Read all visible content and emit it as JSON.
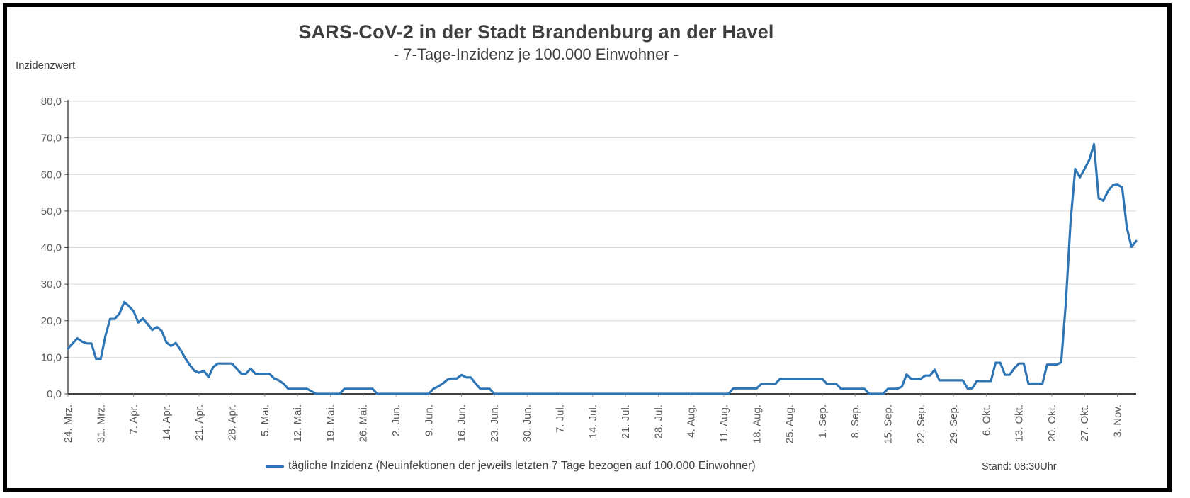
{
  "window": {
    "background": "#ffffff",
    "frame_color": "#000000"
  },
  "header": {
    "title": "SARS-CoV-2 in der Stadt Brandenburg an der Havel",
    "subtitle": "- 7-Tage-Inzidenz je 100.000 Einwohner -"
  },
  "status": {
    "stand_label": "Stand: 08:30Uhr"
  },
  "legend": {
    "label": "tägliche Inzidenz (Neuinfektionen der jeweils letzten 7 Tage bezogen auf 100.000 Einwohner)",
    "marker_color": "#2E75B6"
  },
  "chart_data": {
    "type": "line",
    "title": "SARS-CoV-2 in der Stadt Brandenburg an der Havel",
    "subtitle": "- 7-Tage-Inzidenz je 100.000 Einwohner -",
    "xlabel": "",
    "ylabel": "Inzidenzwert",
    "ylim": [
      0,
      80
    ],
    "grid": true,
    "legend_position": "bottom",
    "line_color": "#2E75B6",
    "gridline_color": "#D9D9D9",
    "axis_color": "#000000",
    "tick_text_color": "#595959",
    "y_tick_labels": [
      "0,0",
      "10,0",
      "20,0",
      "30,0",
      "40,0",
      "50,0",
      "60,0",
      "70,0",
      "80,0"
    ],
    "x_tick_labels": [
      "24. Mrz.",
      "31. Mrz.",
      "7. Apr.",
      "14. Apr.",
      "21. Apr.",
      "28. Apr.",
      "5. Mai.",
      "12. Mai.",
      "19. Mai.",
      "26. Mai.",
      "2. Jun.",
      "9. Jun.",
      "16. Jun.",
      "23. Jun.",
      "30. Jun.",
      "7. Jul.",
      "14. Jul.",
      "21. Jul.",
      "28. Jul.",
      "4. Aug.",
      "11. Aug.",
      "18. Aug.",
      "25. Aug.",
      "1. Sep.",
      "8. Sep.",
      "15. Sep.",
      "22. Sep.",
      "29. Sep.",
      "6. Okt.",
      "13. Okt.",
      "20. Okt.",
      "27. Okt.",
      "3. Nov."
    ],
    "x_tick_day_indices": [
      0,
      7,
      14,
      21,
      28,
      35,
      42,
      49,
      56,
      63,
      70,
      77,
      84,
      91,
      98,
      105,
      112,
      119,
      126,
      133,
      140,
      147,
      154,
      161,
      168,
      175,
      182,
      189,
      196,
      203,
      210,
      217,
      224
    ],
    "series": [
      {
        "name": "tägliche Inzidenz",
        "values": [
          12.4,
          13.8,
          15.2,
          14.3,
          13.8,
          13.8,
          9.6,
          9.6,
          15.9,
          20.5,
          20.5,
          22.0,
          25.1,
          24.0,
          22.6,
          19.5,
          20.6,
          19.1,
          17.5,
          18.3,
          17.2,
          14.1,
          13.1,
          13.9,
          12.1,
          9.8,
          7.9,
          6.3,
          5.8,
          6.3,
          4.6,
          7.3,
          8.3,
          8.3,
          8.3,
          8.3,
          6.9,
          5.5,
          5.5,
          6.9,
          5.5,
          5.5,
          5.5,
          5.5,
          4.2,
          3.7,
          2.8,
          1.4,
          1.4,
          1.4,
          1.4,
          1.4,
          0.7,
          0,
          0,
          0,
          0,
          0,
          0,
          1.4,
          1.4,
          1.4,
          1.4,
          1.4,
          1.4,
          1.4,
          0,
          0,
          0,
          0,
          0,
          0,
          0,
          0,
          0,
          0,
          0,
          0,
          1.4,
          2.0,
          2.8,
          3.9,
          4.2,
          4.2,
          5.2,
          4.5,
          4.5,
          2.8,
          1.4,
          1.4,
          1.4,
          0,
          0,
          0,
          0,
          0,
          0,
          0,
          0,
          0,
          0,
          0,
          0,
          0,
          0,
          0,
          0,
          0,
          0,
          0,
          0,
          0,
          0,
          0,
          0,
          0,
          0,
          0,
          0,
          0,
          0,
          0,
          0,
          0,
          0,
          0,
          0,
          0,
          0,
          0,
          0,
          0,
          0,
          0,
          0,
          0,
          0,
          0,
          0,
          0,
          0,
          0,
          1.5,
          1.5,
          1.5,
          1.5,
          1.5,
          1.5,
          2.7,
          2.7,
          2.7,
          2.7,
          4.1,
          4.1,
          4.1,
          4.1,
          4.1,
          4.1,
          4.1,
          4.1,
          4.1,
          4.1,
          2.7,
          2.7,
          2.7,
          1.4,
          1.4,
          1.4,
          1.4,
          1.4,
          1.4,
          0,
          0,
          0,
          0,
          1.4,
          1.4,
          1.4,
          2.0,
          5.3,
          4.1,
          4.1,
          4.1,
          5.0,
          5.0,
          6.6,
          3.7,
          3.7,
          3.7,
          3.7,
          3.7,
          3.7,
          1.5,
          1.5,
          3.5,
          3.5,
          3.5,
          3.5,
          8.5,
          8.5,
          5.2,
          5.2,
          7.0,
          8.3,
          8.3,
          2.8,
          2.8,
          2.8,
          2.8,
          8.0,
          8.0,
          8.0,
          8.6,
          25.0,
          47.0,
          61.5,
          59.2,
          61.5,
          64.0,
          68.3,
          53.5,
          52.8,
          55.5,
          57.0,
          57.2,
          56.5,
          45.5,
          40.2,
          41.8
        ]
      }
    ]
  }
}
